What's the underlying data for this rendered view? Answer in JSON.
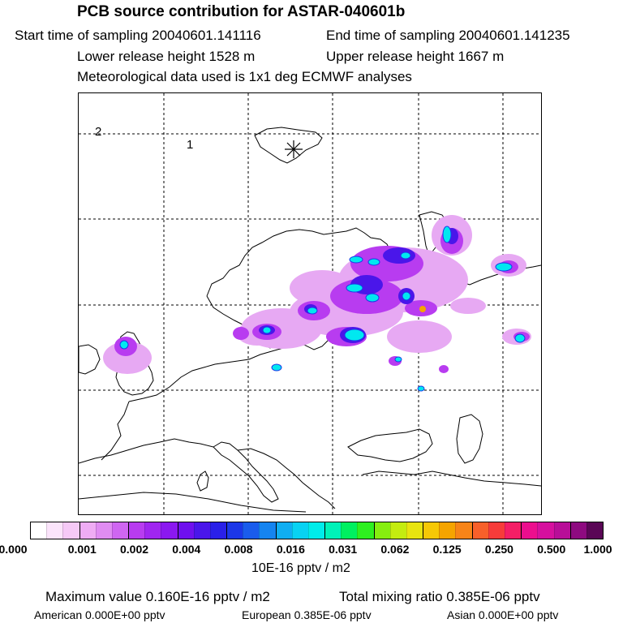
{
  "title": "PCB source contribution for ASTAR-040601b",
  "start_time": "Start time of sampling 20040601.141116",
  "end_time": "End time of sampling 20040601.141235",
  "lower_height": "Lower release height 1528 m",
  "upper_height": "Upper release height 1667 m",
  "met_data": "Meteorological data used is 1x1 deg ECMWF analyses",
  "map": {
    "marker_labels": [
      "2",
      "1"
    ],
    "plume_colors": {
      "light": "#e7a9f3",
      "violet": "#b83cf0",
      "purple": "#8b18f0",
      "blue": "#1c37e8",
      "cyan": "#00e8f0",
      "orange": "#f5a400"
    }
  },
  "colorbar": {
    "colors": [
      "#ffffff",
      "#fbe4fb",
      "#f6c9f7",
      "#efacf4",
      "#e08cf2",
      "#cf66f1",
      "#b83cf0",
      "#a026f0",
      "#8b18f0",
      "#6f10ee",
      "#4a16ea",
      "#2a20e8",
      "#1c37e8",
      "#1a5cec",
      "#1584f0",
      "#10aef2",
      "#08d2f2",
      "#00ecea",
      "#00f2b8",
      "#00f060",
      "#2ef020",
      "#86ee10",
      "#c4ec10",
      "#e8e410",
      "#f6c806",
      "#f5a400",
      "#f78418",
      "#f7602a",
      "#f73c3a",
      "#f41e66",
      "#ec0e8e",
      "#d6109e",
      "#b80e98",
      "#8e0a80",
      "#5a0656"
    ],
    "ticks": [
      "0.000",
      "0.001",
      "0.002",
      "0.004",
      "0.008",
      "0.016",
      "0.031",
      "0.062",
      "0.125",
      "0.250",
      "0.500",
      "1.000"
    ],
    "units": "10E-16 pptv / m2"
  },
  "max_value": "Maximum value  0.160E-16 pptv / m2",
  "total_mixing": "Total mixing ratio  0.385E-06 pptv",
  "american": "American  0.000E+00 pptv",
  "european": "European  0.385E-06 pptv",
  "asian": "Asian  0.000E+00 pptv"
}
